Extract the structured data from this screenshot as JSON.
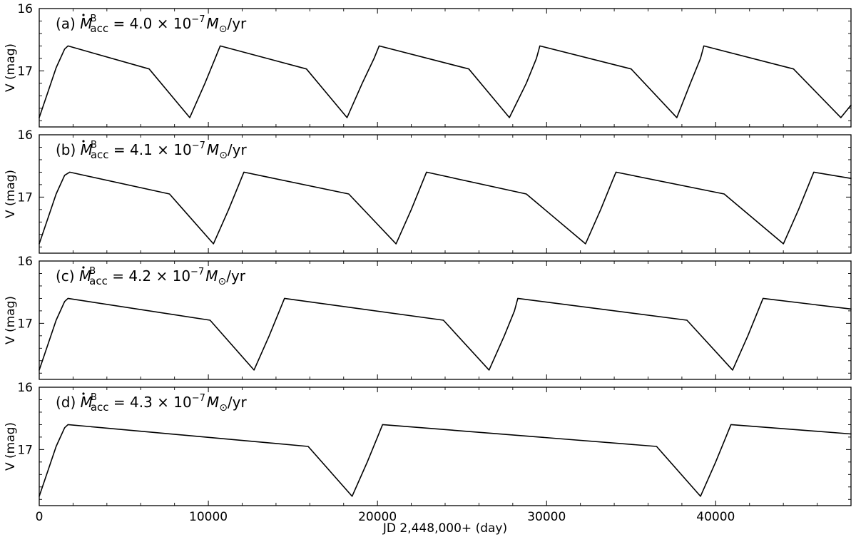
{
  "chart_data": {
    "type": "line",
    "xlabel": "JD 2,448,000+ (day)",
    "ylabel": "V (mag)",
    "xlim": [
      0,
      48000
    ],
    "ylim": [
      17.9,
      16.0
    ],
    "y_inverted": true,
    "xticks": [
      0,
      10000,
      20000,
      30000,
      40000
    ],
    "xtick_labels": [
      "0",
      "10000",
      "20000",
      "30000",
      "40000"
    ],
    "yticks": [
      16,
      17
    ],
    "ytick_labels": [
      "16",
      "17"
    ],
    "grid": false,
    "panels": [
      {
        "letter": "(a)",
        "value": "4.0",
        "exponent": "−7",
        "unit": "/yr",
        "series": [
          {
            "x": [
              0,
              500,
              1000,
              1500,
              1700,
              6500,
              8900,
              9800,
              10400,
              10700,
              15800,
              18200,
              19100,
              19800,
              20100,
              25400,
              27800,
              28800,
              29400,
              29600,
              35000,
              37700,
              38500,
              39100,
              39300,
              44600,
              47400,
              48000
            ],
            "y": [
              17.75,
              17.35,
              16.95,
              16.65,
              16.6,
              16.97,
              17.75,
              17.2,
              16.8,
              16.6,
              16.97,
              17.75,
              17.2,
              16.8,
              16.6,
              16.97,
              17.75,
              17.2,
              16.8,
              16.6,
              16.97,
              17.75,
              17.2,
              16.8,
              16.6,
              16.97,
              17.75,
              17.55
            ]
          }
        ]
      },
      {
        "letter": "(b)",
        "value": "4.1",
        "exponent": "−7",
        "unit": "/yr",
        "series": [
          {
            "x": [
              0,
              500,
              1000,
              1500,
              1800,
              7700,
              10300,
              11200,
              11800,
              12100,
              18300,
              21100,
              22000,
              22600,
              22900,
              28800,
              32300,
              33200,
              33800,
              34100,
              40500,
              44000,
              44900,
              45500,
              45800,
              48000
            ],
            "y": [
              17.75,
              17.35,
              16.95,
              16.65,
              16.6,
              16.95,
              17.75,
              17.2,
              16.8,
              16.6,
              16.95,
              17.75,
              17.2,
              16.8,
              16.6,
              16.95,
              17.75,
              17.2,
              16.8,
              16.6,
              16.95,
              17.75,
              17.2,
              16.8,
              16.6,
              16.7
            ]
          }
        ]
      },
      {
        "letter": "(c)",
        "value": "4.2",
        "exponent": "−7",
        "unit": "/yr",
        "series": [
          {
            "x": [
              0,
              500,
              1000,
              1500,
              1700,
              10100,
              12700,
              13600,
              14200,
              14500,
              23900,
              26600,
              27500,
              28100,
              28300,
              38300,
              41000,
              41900,
              42500,
              42800,
              48000
            ],
            "y": [
              17.75,
              17.35,
              16.95,
              16.65,
              16.6,
              16.95,
              17.75,
              17.2,
              16.8,
              16.6,
              16.95,
              17.75,
              17.2,
              16.8,
              16.6,
              16.95,
              17.75,
              17.2,
              16.8,
              16.6,
              16.77
            ]
          }
        ]
      },
      {
        "letter": "(d)",
        "value": "4.3",
        "exponent": "−7",
        "unit": "/yr",
        "series": [
          {
            "x": [
              0,
              500,
              1000,
              1500,
              1700,
              15900,
              18500,
              19400,
              20000,
              20300,
              36500,
              39100,
              40000,
              40600,
              40900,
              48000
            ],
            "y": [
              17.75,
              17.35,
              16.95,
              16.65,
              16.6,
              16.95,
              17.75,
              17.2,
              16.8,
              16.6,
              16.95,
              17.75,
              17.2,
              16.8,
              16.6,
              16.75
            ]
          }
        ]
      }
    ]
  }
}
